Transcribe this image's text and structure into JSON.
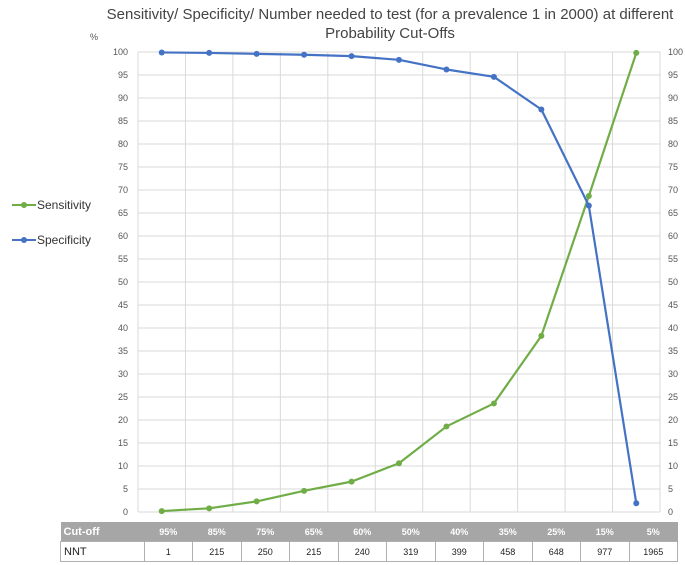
{
  "chart_data": {
    "type": "line",
    "title": [
      "Sensitivity/ Specificity/ Number needed to test (for a prevalence 1 in 2000) at different",
      "Probability Cut-Offs"
    ],
    "ylabel": "%",
    "ylim": [
      0,
      100
    ],
    "ytick_step": 5,
    "grid": true,
    "legend_position": "left",
    "categories": [
      "95%",
      "85%",
      "75%",
      "65%",
      "60%",
      "50%",
      "40%",
      "35%",
      "25%",
      "15%",
      "5%"
    ],
    "series": [
      {
        "name": "Sensitivity",
        "color": "#70ad47",
        "values": [
          0.2,
          0.8,
          2.3,
          4.6,
          6.6,
          10.6,
          18.6,
          23.6,
          38.3,
          68.7,
          99.8
        ]
      },
      {
        "name": "Specificity",
        "color": "#4472c4",
        "values": [
          99.9,
          99.8,
          99.6,
          99.4,
          99.1,
          98.3,
          96.2,
          94.6,
          87.5,
          66.6,
          1.9
        ]
      }
    ]
  },
  "table": {
    "cutoff_label": "Cut-off",
    "nnt_label": "NNT",
    "cutoffs": [
      "95%",
      "85%",
      "75%",
      "65%",
      "60%",
      "50%",
      "40%",
      "35%",
      "25%",
      "15%",
      "5%"
    ],
    "nnt": [
      "1",
      "215",
      "250",
      "215",
      "240",
      "319",
      "399",
      "458",
      "648",
      "977",
      "1965"
    ]
  }
}
